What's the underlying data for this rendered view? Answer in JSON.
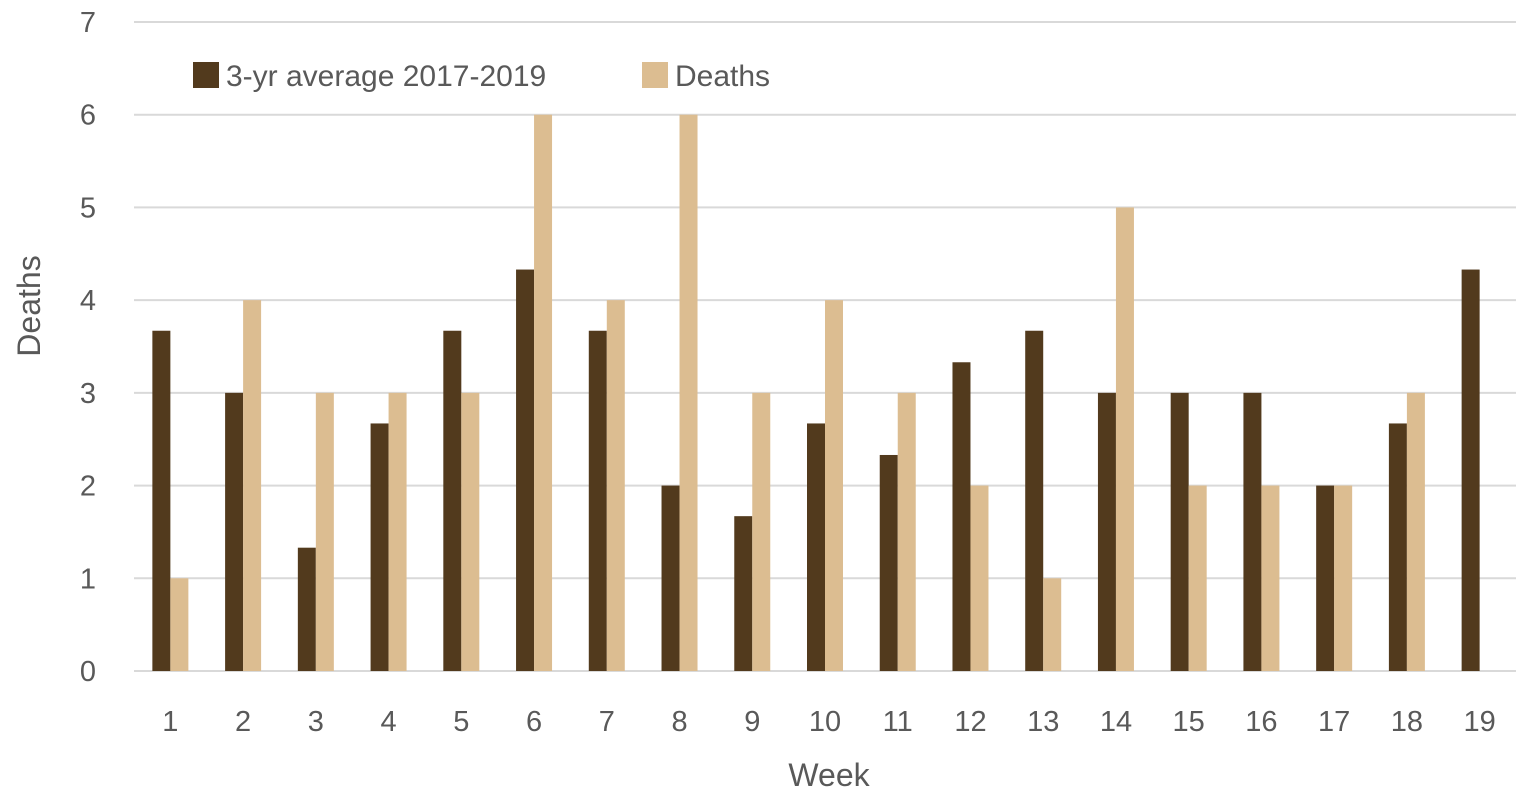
{
  "chart_data": {
    "type": "bar",
    "title": "",
    "xlabel": "Week",
    "ylabel": "Deaths",
    "ylim": [
      0,
      7
    ],
    "yticks": [
      "0",
      "1",
      "2",
      "3",
      "4",
      "5",
      "6",
      "7"
    ],
    "grid": true,
    "legend_position": "top-left",
    "categories": [
      "1",
      "2",
      "3",
      "4",
      "5",
      "6",
      "7",
      "8",
      "9",
      "10",
      "11",
      "12",
      "13",
      "14",
      "15",
      "16",
      "17",
      "18",
      "19"
    ],
    "series": [
      {
        "name": "3-yr average 2017-2019",
        "color": "#523a1d",
        "values": [
          3.67,
          3,
          1.33,
          2.67,
          3.67,
          4.33,
          3.67,
          2,
          1.67,
          2.67,
          2.33,
          3.33,
          3.67,
          3,
          3,
          3,
          2,
          2.67,
          4.33
        ]
      },
      {
        "name": "Deaths",
        "color": "#dcbd91",
        "values": [
          1,
          4,
          3,
          3,
          3,
          6,
          4,
          6,
          3,
          4,
          3,
          2,
          1,
          5,
          2,
          2,
          2,
          3,
          null
        ]
      }
    ]
  }
}
